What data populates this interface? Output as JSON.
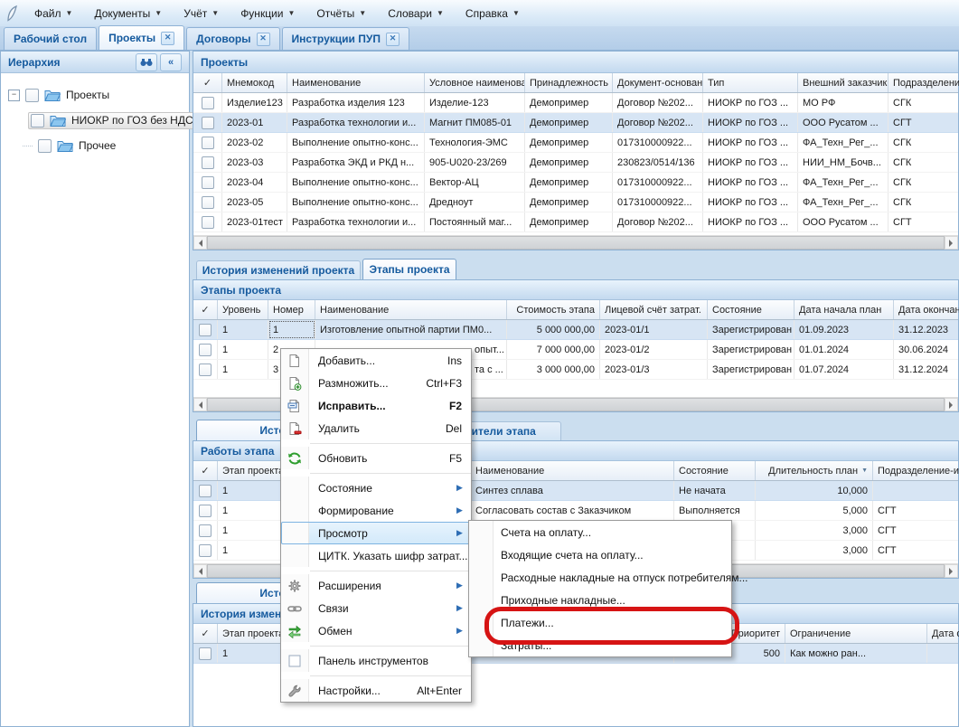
{
  "menu_bar": {
    "items": [
      "Файл",
      "Документы",
      "Учёт",
      "Функции",
      "Отчёты",
      "Словари",
      "Справка"
    ]
  },
  "window_tabs": {
    "tabs": [
      {
        "label": "Рабочий стол",
        "closable": false,
        "active": false
      },
      {
        "label": "Проекты",
        "closable": true,
        "active": true
      },
      {
        "label": "Договоры",
        "closable": true,
        "active": false
      },
      {
        "label": "Инструкции ПУП",
        "closable": true,
        "active": false
      }
    ]
  },
  "sidebar": {
    "title": "Иерархия",
    "tools": [
      "binoculars",
      "collapse"
    ],
    "tree": [
      {
        "label": "Проекты",
        "level": 0,
        "expanded": true,
        "highlight": false
      },
      {
        "label": "НИОКР по ГОЗ без НДС",
        "level": 1,
        "expanded": false,
        "highlight": true
      },
      {
        "label": "Прочее",
        "level": 1,
        "expanded": false,
        "highlight": false
      }
    ]
  },
  "projects_panel": {
    "caption": "Проекты",
    "columns": [
      "Мнемокод",
      "Наименование",
      "Условное наименова",
      "Принадлежность",
      "Документ-основан",
      "Тип",
      "Внешний заказчик",
      "Подразделени"
    ],
    "rows": [
      [
        "Изделие123",
        "Разработка изделия 123",
        "Изделие-123",
        "Демопример",
        "Договор №202...",
        "НИОКР по ГОЗ ...",
        "МО РФ",
        "СГК"
      ],
      [
        "2023-01",
        "Разработка технологии и...",
        "Магнит ПМ085-01",
        "Демопример",
        "Договор №202...",
        "НИОКР по ГОЗ ...",
        "ООО Русатом ...",
        "СГТ"
      ],
      [
        "2023-02",
        "Выполнение опытно-конс...",
        "Технология-ЭМС",
        "Демопример",
        "017310000922...",
        "НИОКР по ГОЗ ...",
        "ФА_Техн_Рег_...",
        "СГК"
      ],
      [
        "2023-03",
        "Разработка ЭКД и РКД н...",
        "905-U020-23/269",
        "Демопример",
        "230823/0514/136",
        "НИОКР по ГОЗ ...",
        "НИИ_НМ_Бочв...",
        "СГК"
      ],
      [
        "2023-04",
        "Выполнение опытно-конс...",
        "Вектор-АЦ",
        "Демопример",
        "017310000922...",
        "НИОКР по ГОЗ ...",
        "ФА_Техн_Рег_...",
        "СГК"
      ],
      [
        "2023-05",
        "Выполнение опытно-конс...",
        "Дредноут",
        "Демопример",
        "017310000922...",
        "НИОКР по ГОЗ ...",
        "ФА_Техн_Рег_...",
        "СГК"
      ],
      [
        "2023-01тест",
        "Разработка технологии и...",
        "Постоянный маг...",
        "Демопример",
        "Договор №202...",
        "НИОКР по ГОЗ ...",
        "ООО Русатом ...",
        "СГТ"
      ]
    ],
    "selected_row": 1
  },
  "stage_tabs": {
    "tabs": [
      "История изменений проекта",
      "Этапы проекта"
    ],
    "active": 1
  },
  "stages_panel": {
    "caption": "Этапы проекта",
    "columns": [
      "Уровень",
      "Номер",
      "Наименование",
      "Стоимость этапа",
      "Лицевой счёт затрат.",
      "Состояние",
      "Дата начала план",
      "Дата окончан"
    ],
    "rows": [
      [
        "1",
        "1",
        "Изготовление опытной партии ПМ0...",
        "5 000 000,00",
        "2023-01/1",
        "Зарегистрирован",
        "01.09.2023",
        "31.12.2023"
      ],
      [
        "1",
        "2",
        "опыт...",
        "7 000 000,00",
        "2023-01/2",
        "Зарегистрирован",
        "01.01.2024",
        "30.06.2024"
      ],
      [
        "1",
        "3",
        "та с ...",
        "3 000 000,00",
        "2023-01/3",
        "Зарегистрирован",
        "01.07.2024",
        "31.12.2024"
      ]
    ],
    "selected_row": 0
  },
  "work_tabs": {
    "tabs": [
      "История измен",
      "Исполнители этапа"
    ],
    "active": 0
  },
  "works_panel": {
    "caption": "Работы этапа",
    "columns": [
      "Этап проекта",
      "Наименование",
      "Состояние",
      "Длительность план",
      "Подразделение-исп"
    ],
    "sort_column": "Длительность план",
    "rows": [
      [
        "1",
        "Синтез сплава",
        "Не начата",
        "10,000",
        ""
      ],
      [
        "1",
        "Согласовать состав с Заказчиком",
        "Выполняется",
        "5,000",
        "СГТ"
      ],
      [
        "1",
        "",
        "",
        "3,000",
        "СГТ"
      ],
      [
        "1",
        "",
        "",
        "3,000",
        "СГТ"
      ]
    ],
    "selected_row": 0
  },
  "history_tabs": {
    "tabs": [
      "История измен"
    ],
    "active": 0
  },
  "history_panel": {
    "caption": "История измене",
    "columns": [
      "Этап проекта",
      "Наименование",
      "Приоритет",
      "Ограничение",
      "Дата ограниче"
    ],
    "rows": [
      [
        "1",
        "Синтез сплава",
        "500",
        "Как можно ран...",
        ""
      ]
    ],
    "selected_row": 0
  },
  "context_menu": {
    "items": [
      {
        "label": "Добавить...",
        "shortcut": "Ins",
        "icon": "new-document"
      },
      {
        "label": "Размножить...",
        "shortcut": "Ctrl+F3",
        "icon": "copy-document"
      },
      {
        "label": "Исправить...",
        "shortcut": "F2",
        "icon": "edit-document",
        "bold": true
      },
      {
        "label": "Удалить",
        "shortcut": "Del",
        "icon": "delete-document"
      },
      {
        "separator": true
      },
      {
        "label": "Обновить",
        "shortcut": "F5",
        "icon": "refresh"
      },
      {
        "separator": true
      },
      {
        "label": "Состояние",
        "submenu": true
      },
      {
        "label": "Формирование",
        "submenu": true
      },
      {
        "label": "Просмотр",
        "submenu": true,
        "highlight": true
      },
      {
        "label": "ЦИТК. Указать шифр затрат..."
      },
      {
        "separator": true
      },
      {
        "label": "Расширения",
        "submenu": true,
        "icon": "extensions-gear"
      },
      {
        "label": "Связи",
        "submenu": true,
        "icon": "links-chain"
      },
      {
        "label": "Обмен",
        "submenu": true,
        "icon": "exchange-arrows"
      },
      {
        "separator": true
      },
      {
        "label": "Панель инструментов",
        "icon": "checkbox"
      },
      {
        "separator": true
      },
      {
        "label": "Настройки...",
        "shortcut": "Alt+Enter",
        "icon": "wrench"
      }
    ]
  },
  "view_submenu": {
    "items": [
      "Счета на оплату...",
      "Входящие счета на оплату...",
      "Расходные накладные на отпуск потребителям...",
      "Приходные накладные...",
      "Платежи...",
      "Затраты..."
    ],
    "annotated_item": "Платежи...",
    "annotation_color": "#d61414"
  },
  "colors": {
    "accent": "#155a9e",
    "selection": "#d7e5f4",
    "annotation": "#d61414"
  }
}
